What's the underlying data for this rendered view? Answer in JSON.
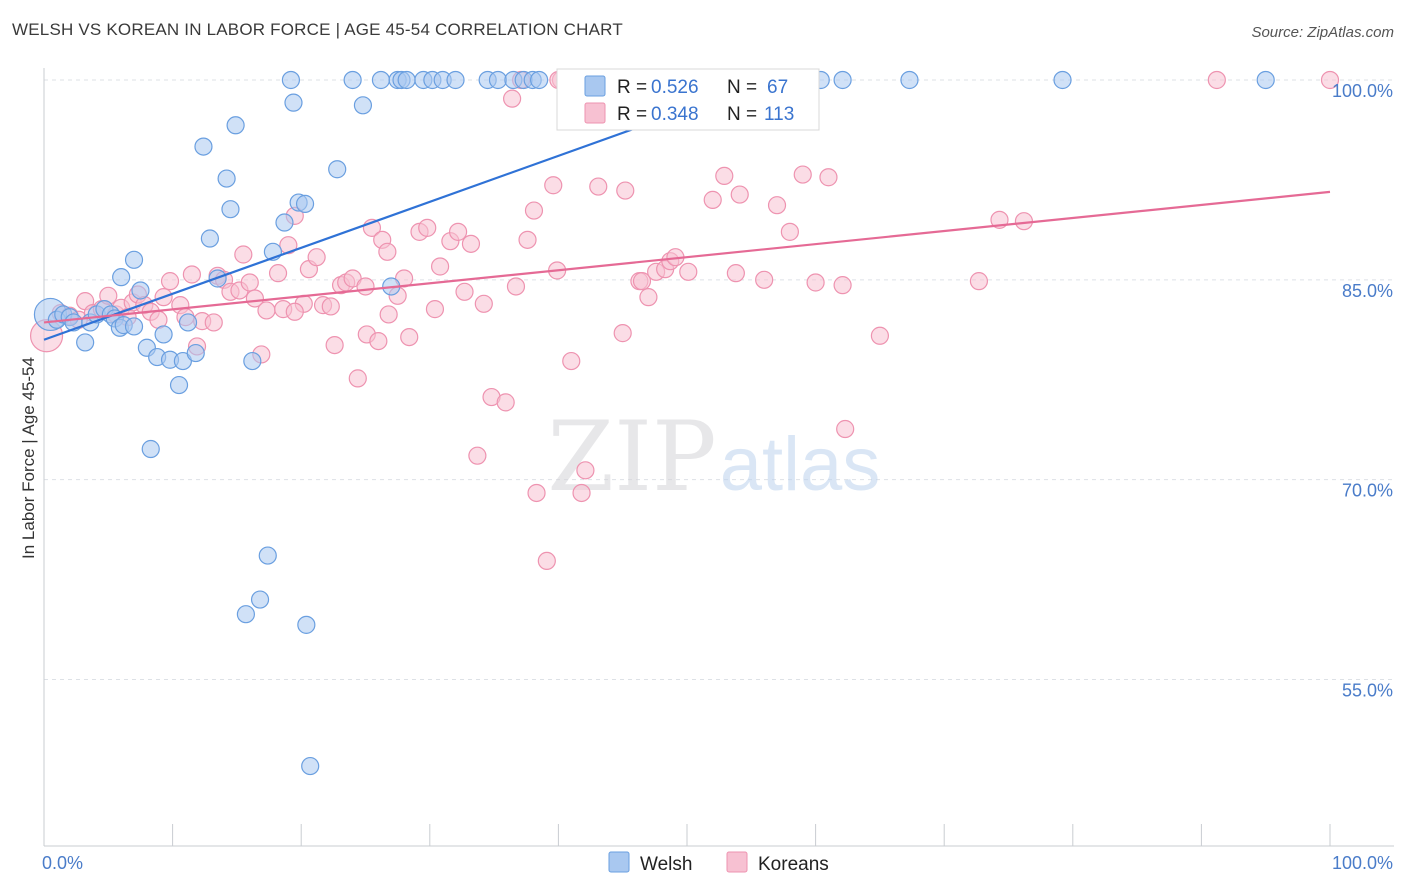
{
  "title": "WELSH VS KOREAN IN LABOR FORCE | AGE 45-54 CORRELATION CHART",
  "source": "Source: ZipAtlas.com",
  "watermark": {
    "zip": "ZIP",
    "atlas": "atlas"
  },
  "colors": {
    "welsh_fill": "#a9c8f0",
    "welsh_stroke": "#6a9fe0",
    "welsh_line": "#2f72d6",
    "korean_fill": "#f7c1d2",
    "korean_stroke": "#ee93b0",
    "korean_line": "#e56a95",
    "tick_label": "#4a7cc9",
    "grid": "#dde1e6"
  },
  "legend_top": {
    "welsh": {
      "r_label": "R =",
      "r_value": "0.526",
      "n_label": "N =",
      "n_value": "67"
    },
    "korean": {
      "r_label": "R =",
      "r_value": "0.348",
      "n_label": "N =",
      "n_value": "113"
    }
  },
  "chart_data": {
    "type": "scatter",
    "title": "WELSH VS KOREAN IN LABOR FORCE | AGE 45-54 CORRELATION CHART",
    "xlabel": "",
    "ylabel": "In Labor Force | Age 45-54",
    "xlim": [
      0,
      100
    ],
    "ylim": [
      42.5,
      101.5
    ],
    "x_tick_labels": [
      "0.0%",
      "100.0%"
    ],
    "y_ticks": [
      {
        "value": 100,
        "label": "100.0%"
      },
      {
        "value": 85,
        "label": "85.0%"
      },
      {
        "value": 70,
        "label": "70.0%"
      },
      {
        "value": 55,
        "label": "55.0%"
      }
    ],
    "grid": true,
    "legend_position": "bottom-center",
    "series": [
      {
        "name": "Welsh",
        "r": 0.526,
        "n": 67,
        "trend": {
          "x": [
            0,
            56.5
          ],
          "y": [
            80.5,
            100
          ]
        },
        "points": [
          {
            "x": 0.5,
            "y": 82.4,
            "big": true
          },
          {
            "x": 1.0,
            "y": 82.0
          },
          {
            "x": 1.5,
            "y": 82.4
          },
          {
            "x": 2.0,
            "y": 82.2
          },
          {
            "x": 2.3,
            "y": 81.8
          },
          {
            "x": 3.2,
            "y": 80.3
          },
          {
            "x": 3.6,
            "y": 81.8
          },
          {
            "x": 4.1,
            "y": 82.4
          },
          {
            "x": 4.7,
            "y": 82.8
          },
          {
            "x": 5.2,
            "y": 82.4
          },
          {
            "x": 5.5,
            "y": 82.1
          },
          {
            "x": 5.9,
            "y": 81.4
          },
          {
            "x": 6.2,
            "y": 81.6
          },
          {
            "x": 6.0,
            "y": 85.2
          },
          {
            "x": 7.0,
            "y": 86.5
          },
          {
            "x": 7.5,
            "y": 84.2
          },
          {
            "x": 7.0,
            "y": 81.5
          },
          {
            "x": 8.0,
            "y": 79.9
          },
          {
            "x": 8.8,
            "y": 79.2
          },
          {
            "x": 9.3,
            "y": 80.9
          },
          {
            "x": 9.8,
            "y": 79.0
          },
          {
            "x": 10.5,
            "y": 77.1
          },
          {
            "x": 10.8,
            "y": 78.9
          },
          {
            "x": 11.2,
            "y": 81.8
          },
          {
            "x": 11.8,
            "y": 79.5
          },
          {
            "x": 12.4,
            "y": 95.0
          },
          {
            "x": 12.9,
            "y": 88.1
          },
          {
            "x": 13.5,
            "y": 85.1
          },
          {
            "x": 14.2,
            "y": 92.6
          },
          {
            "x": 14.5,
            "y": 90.3
          },
          {
            "x": 14.9,
            "y": 96.6
          },
          {
            "x": 16.2,
            "y": 78.9
          },
          {
            "x": 17.8,
            "y": 87.1
          },
          {
            "x": 18.7,
            "y": 89.3
          },
          {
            "x": 19.2,
            "y": 100
          },
          {
            "x": 19.4,
            "y": 98.3
          },
          {
            "x": 19.8,
            "y": 90.8
          },
          {
            "x": 20.3,
            "y": 90.7
          },
          {
            "x": 22.8,
            "y": 93.3
          },
          {
            "x": 24.0,
            "y": 100
          },
          {
            "x": 24.8,
            "y": 98.1
          },
          {
            "x": 26.2,
            "y": 100
          },
          {
            "x": 27.0,
            "y": 84.5
          },
          {
            "x": 27.5,
            "y": 100
          },
          {
            "x": 27.8,
            "y": 100
          },
          {
            "x": 28.2,
            "y": 100
          },
          {
            "x": 29.5,
            "y": 100
          },
          {
            "x": 30.2,
            "y": 100
          },
          {
            "x": 31.0,
            "y": 100
          },
          {
            "x": 32.0,
            "y": 100
          },
          {
            "x": 34.5,
            "y": 100
          },
          {
            "x": 35.3,
            "y": 100
          },
          {
            "x": 36.5,
            "y": 100
          },
          {
            "x": 37.3,
            "y": 100
          },
          {
            "x": 38.0,
            "y": 100
          },
          {
            "x": 38.5,
            "y": 100
          },
          {
            "x": 40.6,
            "y": 100
          },
          {
            "x": 60.4,
            "y": 100
          },
          {
            "x": 62.1,
            "y": 100
          },
          {
            "x": 67.3,
            "y": 100
          },
          {
            "x": 79.2,
            "y": 100
          },
          {
            "x": 95.0,
            "y": 100
          },
          {
            "x": 8.3,
            "y": 72.3
          },
          {
            "x": 17.4,
            "y": 64.3
          },
          {
            "x": 16.8,
            "y": 61.0
          },
          {
            "x": 15.7,
            "y": 59.9
          },
          {
            "x": 20.4,
            "y": 59.1
          },
          {
            "x": 20.7,
            "y": 48.5
          }
        ]
      },
      {
        "name": "Koreans",
        "r": 0.348,
        "n": 113,
        "trend": {
          "x": [
            0,
            100
          ],
          "y": [
            81.8,
            91.6
          ]
        },
        "points": [
          {
            "x": 0.2,
            "y": 80.8,
            "big": true
          },
          {
            "x": 1.3,
            "y": 82.5
          },
          {
            "x": 2.0,
            "y": 82.3
          },
          {
            "x": 2.7,
            "y": 82.0
          },
          {
            "x": 3.2,
            "y": 83.4
          },
          {
            "x": 3.8,
            "y": 82.5
          },
          {
            "x": 4.5,
            "y": 82.8
          },
          {
            "x": 5.0,
            "y": 83.8
          },
          {
            "x": 5.6,
            "y": 82.4
          },
          {
            "x": 6.0,
            "y": 82.9
          },
          {
            "x": 6.5,
            "y": 82.2
          },
          {
            "x": 6.9,
            "y": 83.3
          },
          {
            "x": 7.3,
            "y": 83.9
          },
          {
            "x": 7.8,
            "y": 83.1
          },
          {
            "x": 8.3,
            "y": 82.6
          },
          {
            "x": 8.9,
            "y": 82.0
          },
          {
            "x": 9.3,
            "y": 83.7
          },
          {
            "x": 9.8,
            "y": 84.9
          },
          {
            "x": 10.6,
            "y": 83.1
          },
          {
            "x": 11.0,
            "y": 82.2
          },
          {
            "x": 11.5,
            "y": 85.4
          },
          {
            "x": 11.9,
            "y": 80.0
          },
          {
            "x": 12.3,
            "y": 81.9
          },
          {
            "x": 13.2,
            "y": 81.8
          },
          {
            "x": 13.5,
            "y": 85.3
          },
          {
            "x": 14.0,
            "y": 85.0
          },
          {
            "x": 14.5,
            "y": 84.1
          },
          {
            "x": 15.2,
            "y": 84.2
          },
          {
            "x": 15.5,
            "y": 86.9
          },
          {
            "x": 16.0,
            "y": 84.8
          },
          {
            "x": 16.4,
            "y": 83.6
          },
          {
            "x": 16.9,
            "y": 79.4
          },
          {
            "x": 17.3,
            "y": 82.7
          },
          {
            "x": 18.2,
            "y": 85.5
          },
          {
            "x": 18.6,
            "y": 82.8
          },
          {
            "x": 19.0,
            "y": 87.6
          },
          {
            "x": 19.5,
            "y": 89.8
          },
          {
            "x": 20.2,
            "y": 83.2
          },
          {
            "x": 20.6,
            "y": 85.8
          },
          {
            "x": 21.2,
            "y": 86.7
          },
          {
            "x": 21.7,
            "y": 83.1
          },
          {
            "x": 22.3,
            "y": 83.0
          },
          {
            "x": 22.6,
            "y": 80.1
          },
          {
            "x": 23.1,
            "y": 84.6
          },
          {
            "x": 23.5,
            "y": 84.8
          },
          {
            "x": 24.0,
            "y": 85.1
          },
          {
            "x": 24.4,
            "y": 77.6
          },
          {
            "x": 25.1,
            "y": 80.9
          },
          {
            "x": 25.5,
            "y": 88.9
          },
          {
            "x": 26.0,
            "y": 80.4
          },
          {
            "x": 26.3,
            "y": 88.0
          },
          {
            "x": 26.7,
            "y": 87.1
          },
          {
            "x": 27.5,
            "y": 83.8
          },
          {
            "x": 28.0,
            "y": 85.1
          },
          {
            "x": 28.4,
            "y": 80.7
          },
          {
            "x": 29.2,
            "y": 88.6
          },
          {
            "x": 29.8,
            "y": 88.9
          },
          {
            "x": 30.4,
            "y": 82.8
          },
          {
            "x": 30.8,
            "y": 86.0
          },
          {
            "x": 31.6,
            "y": 87.9
          },
          {
            "x": 32.2,
            "y": 88.6
          },
          {
            "x": 32.7,
            "y": 84.1
          },
          {
            "x": 33.2,
            "y": 87.7
          },
          {
            "x": 33.7,
            "y": 71.8
          },
          {
            "x": 34.2,
            "y": 83.2
          },
          {
            "x": 34.8,
            "y": 76.2
          },
          {
            "x": 35.9,
            "y": 75.8
          },
          {
            "x": 36.4,
            "y": 98.6
          },
          {
            "x": 36.7,
            "y": 84.5
          },
          {
            "x": 37.6,
            "y": 88.0
          },
          {
            "x": 38.1,
            "y": 90.2
          },
          {
            "x": 38.3,
            "y": 69.0
          },
          {
            "x": 39.1,
            "y": 63.9
          },
          {
            "x": 39.6,
            "y": 92.1
          },
          {
            "x": 39.9,
            "y": 85.7
          },
          {
            "x": 40.2,
            "y": 100
          },
          {
            "x": 41.0,
            "y": 78.9
          },
          {
            "x": 41.8,
            "y": 69.0
          },
          {
            "x": 42.1,
            "y": 70.7
          },
          {
            "x": 43.1,
            "y": 92.0
          },
          {
            "x": 45.0,
            "y": 81.0
          },
          {
            "x": 45.2,
            "y": 91.7
          },
          {
            "x": 46.3,
            "y": 84.9
          },
          {
            "x": 46.5,
            "y": 84.9
          },
          {
            "x": 47.0,
            "y": 83.7
          },
          {
            "x": 47.6,
            "y": 85.6
          },
          {
            "x": 48.3,
            "y": 85.8
          },
          {
            "x": 48.7,
            "y": 86.4
          },
          {
            "x": 49.1,
            "y": 86.7
          },
          {
            "x": 50.1,
            "y": 85.6
          },
          {
            "x": 52.0,
            "y": 91.0
          },
          {
            "x": 52.9,
            "y": 92.8
          },
          {
            "x": 54.1,
            "y": 91.4
          },
          {
            "x": 53.8,
            "y": 85.5
          },
          {
            "x": 56.0,
            "y": 85.0
          },
          {
            "x": 57.0,
            "y": 90.6
          },
          {
            "x": 58.0,
            "y": 88.6
          },
          {
            "x": 59.0,
            "y": 92.9
          },
          {
            "x": 60.0,
            "y": 84.8
          },
          {
            "x": 61.0,
            "y": 92.7
          },
          {
            "x": 62.1,
            "y": 84.6
          },
          {
            "x": 62.3,
            "y": 73.8
          },
          {
            "x": 65.0,
            "y": 80.8
          },
          {
            "x": 72.7,
            "y": 84.9
          },
          {
            "x": 74.3,
            "y": 89.5
          },
          {
            "x": 76.2,
            "y": 89.4
          },
          {
            "x": 37.1,
            "y": 100
          },
          {
            "x": 40.0,
            "y": 100
          },
          {
            "x": 91.2,
            "y": 100
          },
          {
            "x": 100.0,
            "y": 100
          },
          {
            "x": 25.0,
            "y": 84.5
          },
          {
            "x": 19.5,
            "y": 82.6
          },
          {
            "x": 26.8,
            "y": 82.4
          }
        ]
      }
    ]
  }
}
